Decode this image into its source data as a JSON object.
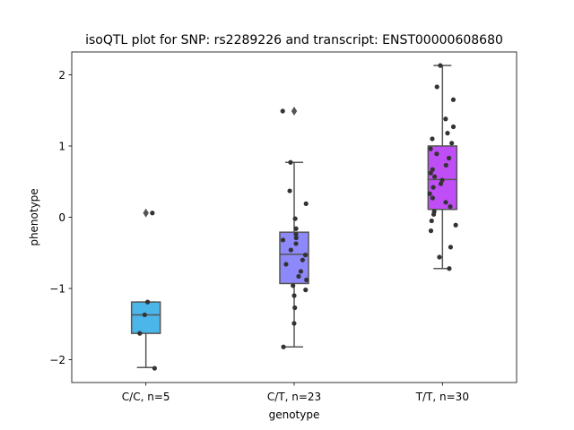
{
  "chart_data": {
    "type": "box",
    "title": "isoQTL plot for SNP: rs2289226 and transcript: ENST00000608680",
    "xlabel": "genotype",
    "ylabel": "phenotype",
    "ylim": [
      -2.32,
      2.32
    ],
    "yticks": [
      -2,
      -1,
      0,
      1,
      2
    ],
    "grid": false,
    "legend": "none",
    "categories": [
      "C/C, n=5",
      "C/T, n=23",
      "T/T, n=30"
    ],
    "box_colors": [
      "#4bb6ea",
      "#8d89fb",
      "#c04ef6"
    ],
    "box_edge_color": "#555555",
    "point_color": "#333333",
    "groups": [
      {
        "label": "C/C, n=5",
        "whisker_low": -2.11,
        "q1": -1.63,
        "median": -1.37,
        "q3": -1.19,
        "whisker_high": -1.19,
        "outliers": [
          0.06
        ],
        "points": [
          0.06,
          -1.19,
          -1.37,
          -1.63,
          -2.12
        ]
      },
      {
        "label": "C/T, n=23",
        "whisker_low": -1.82,
        "q1": -0.93,
        "median": -0.52,
        "q3": -0.21,
        "whisker_high": 0.77,
        "outliers": [
          1.49
        ],
        "points": [
          1.49,
          0.77,
          0.37,
          0.19,
          -0.02,
          -0.16,
          -0.24,
          -0.29,
          -0.37,
          -0.46,
          -0.53,
          -0.6,
          -0.66,
          -0.76,
          -0.83,
          -0.88,
          -0.96,
          -1.02,
          -1.1,
          -1.27,
          -1.49,
          -1.82,
          -0.32
        ]
      },
      {
        "label": "T/T, n=30",
        "whisker_low": -0.72,
        "q1": 0.11,
        "median": 0.53,
        "q3": 1.0,
        "whisker_high": 2.13,
        "outliers": [],
        "points": [
          2.13,
          1.83,
          1.65,
          1.38,
          1.27,
          1.18,
          1.1,
          1.04,
          0.96,
          0.89,
          0.83,
          0.73,
          0.67,
          0.62,
          0.57,
          0.52,
          0.47,
          0.42,
          0.33,
          0.27,
          0.21,
          0.15,
          0.08,
          0.04,
          -0.05,
          -0.11,
          -0.19,
          -0.42,
          -0.56,
          -0.72
        ]
      }
    ]
  }
}
